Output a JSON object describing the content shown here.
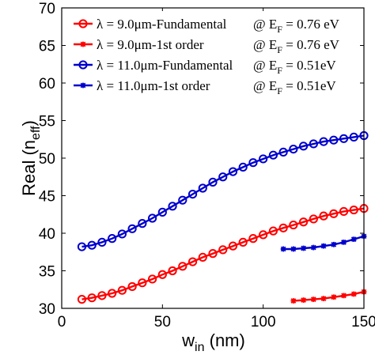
{
  "chart_data": {
    "type": "line",
    "xlabel": "w",
    "xlabel_sub": "in",
    "xlabel_unit": " (nm)",
    "ylabel": "Real (n",
    "ylabel_sub": "eff",
    "ylabel_close": ")",
    "xlim": [
      0,
      150
    ],
    "ylim": [
      30,
      70
    ],
    "xticks": [
      0,
      50,
      100,
      150
    ],
    "yticks": [
      30,
      35,
      40,
      45,
      50,
      55,
      60,
      65,
      70
    ],
    "grid": false,
    "legend_position": "top-left",
    "series": [
      {
        "legend_main": "λ = 9.0μm-Fundamental",
        "legend_cond": "@ E",
        "legend_sub": "F",
        "legend_val": " = 0.76 eV",
        "color": "#ff0000",
        "marker": "circle",
        "x": [
          10,
          15,
          20,
          25,
          30,
          35,
          40,
          45,
          50,
          55,
          60,
          65,
          70,
          75,
          80,
          85,
          90,
          95,
          100,
          105,
          110,
          115,
          120,
          125,
          130,
          135,
          140,
          145,
          150
        ],
        "y": [
          31.2,
          31.4,
          31.7,
          32.0,
          32.4,
          32.9,
          33.4,
          33.9,
          34.5,
          35.0,
          35.6,
          36.2,
          36.8,
          37.3,
          37.8,
          38.3,
          38.8,
          39.3,
          39.8,
          40.3,
          40.7,
          41.1,
          41.5,
          41.9,
          42.3,
          42.6,
          42.9,
          43.1,
          43.3
        ]
      },
      {
        "legend_main": "λ = 9.0μm-1st order",
        "legend_cond": "@ E",
        "legend_sub": "F",
        "legend_val": " = 0.76 eV",
        "color": "#ff0000",
        "marker": "star",
        "x": [
          115,
          120,
          125,
          130,
          135,
          140,
          145,
          150
        ],
        "y": [
          31.0,
          31.1,
          31.2,
          31.3,
          31.5,
          31.7,
          31.9,
          32.2
        ]
      },
      {
        "legend_main": "λ = 11.0μm-Fundamental",
        "legend_cond": "@ E",
        "legend_sub": "F",
        "legend_val": " = 0.51eV",
        "color": "#0000cc",
        "marker": "circle",
        "x": [
          10,
          15,
          20,
          25,
          30,
          35,
          40,
          45,
          50,
          55,
          60,
          65,
          70,
          75,
          80,
          85,
          90,
          95,
          100,
          105,
          110,
          115,
          120,
          125,
          130,
          135,
          140,
          145,
          150
        ],
        "y": [
          38.2,
          38.4,
          38.8,
          39.3,
          39.9,
          40.6,
          41.3,
          42.0,
          42.8,
          43.6,
          44.4,
          45.2,
          46.0,
          46.8,
          47.5,
          48.2,
          48.8,
          49.4,
          49.9,
          50.4,
          50.8,
          51.2,
          51.6,
          51.9,
          52.2,
          52.4,
          52.6,
          52.8,
          53.0
        ]
      },
      {
        "legend_main": "λ = 11.0μm-1st order",
        "legend_cond": "@ E",
        "legend_sub": "F",
        "legend_val": " = 0.51eV",
        "color": "#0000cc",
        "marker": "star",
        "x": [
          110,
          115,
          120,
          125,
          130,
          135,
          140,
          145,
          150
        ],
        "y": [
          37.9,
          37.9,
          38.0,
          38.1,
          38.3,
          38.5,
          38.8,
          39.2,
          39.6
        ]
      }
    ]
  }
}
